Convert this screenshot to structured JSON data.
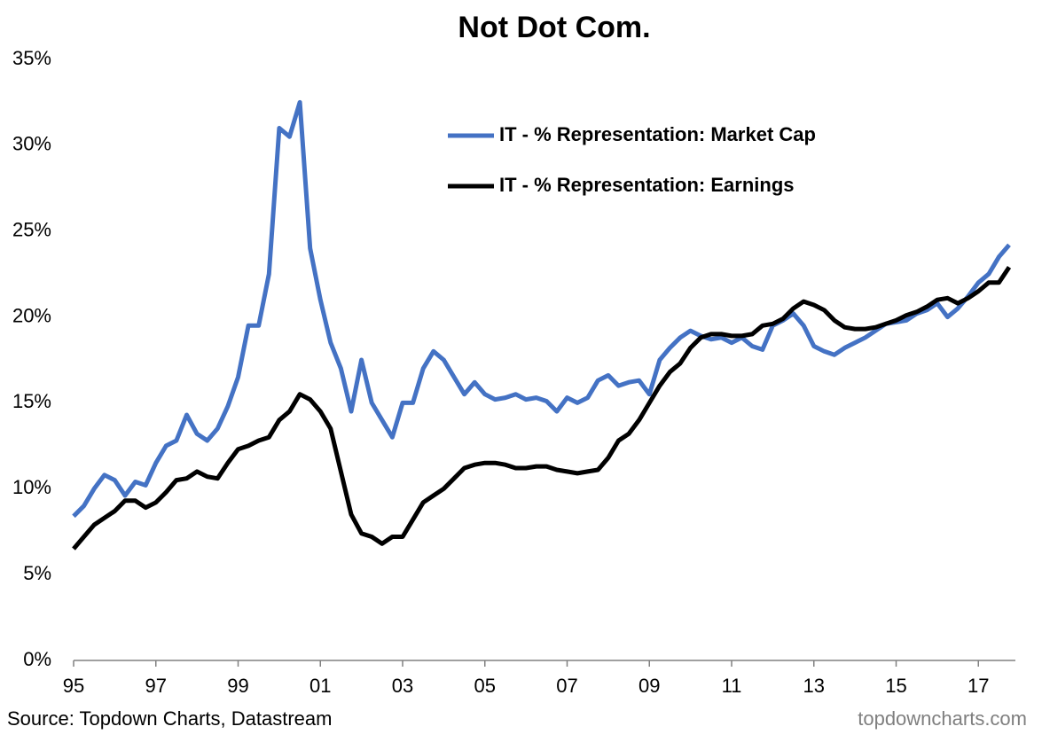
{
  "chart_data": {
    "type": "line",
    "title": "Not Dot Com.",
    "source": "Source: Topdown Charts, Datastream",
    "watermark": "topdowncharts.com",
    "x": [
      1995,
      1995.25,
      1995.5,
      1995.75,
      1996,
      1996.25,
      1996.5,
      1996.75,
      1997,
      1997.25,
      1997.5,
      1997.75,
      1998,
      1998.25,
      1998.5,
      1998.75,
      1999,
      1999.25,
      1999.5,
      1999.75,
      2000,
      2000.25,
      2000.5,
      2000.75,
      2001,
      2001.25,
      2001.5,
      2001.75,
      2002,
      2002.25,
      2002.5,
      2002.75,
      2003,
      2003.25,
      2003.5,
      2003.75,
      2004,
      2004.25,
      2004.5,
      2004.75,
      2005,
      2005.25,
      2005.5,
      2005.75,
      2006,
      2006.25,
      2006.5,
      2006.75,
      2007,
      2007.25,
      2007.5,
      2007.75,
      2008,
      2008.25,
      2008.5,
      2008.75,
      2009,
      2009.25,
      2009.5,
      2009.75,
      2010,
      2010.25,
      2010.5,
      2010.75,
      2011,
      2011.25,
      2011.5,
      2011.75,
      2012,
      2012.25,
      2012.5,
      2012.75,
      2013,
      2013.25,
      2013.5,
      2013.75,
      2014,
      2014.25,
      2014.5,
      2014.75,
      2015,
      2015.25,
      2015.5,
      2015.75,
      2016,
      2016.25,
      2016.5,
      2016.75,
      2017,
      2017.25,
      2017.5,
      2017.75
    ],
    "series": [
      {
        "name": "IT - % Representation: Market Cap",
        "color": "#4472c4",
        "values": [
          8.4,
          9.0,
          10.0,
          10.8,
          10.5,
          9.6,
          10.4,
          10.2,
          11.5,
          12.5,
          12.8,
          14.3,
          13.2,
          12.8,
          13.5,
          14.8,
          16.5,
          19.5,
          19.5,
          22.5,
          31,
          30.5,
          32.5,
          24,
          21,
          18.5,
          17,
          14.5,
          17.5,
          15,
          14,
          13,
          15,
          15,
          17,
          18,
          17.5,
          16.5,
          15.5,
          16.2,
          15.5,
          15.2,
          15.3,
          15.5,
          15.2,
          15.3,
          15.1,
          14.5,
          15.3,
          15.0,
          15.3,
          16.3,
          16.6,
          16.0,
          16.2,
          16.3,
          15.5,
          17.5,
          18.2,
          18.8,
          19.2,
          18.9,
          18.7,
          18.8,
          18.5,
          18.8,
          18.3,
          18.1,
          19.5,
          19.8,
          20.2,
          19.5,
          18.3,
          18.0,
          17.8,
          18.2,
          18.5,
          18.8,
          19.2,
          19.6,
          19.7,
          19.8,
          20.2,
          20.4,
          20.8,
          20.0,
          20.5,
          21.2,
          22.0,
          22.5,
          23.5,
          24.2
        ]
      },
      {
        "name": "IT - % Representation: Earnings",
        "color": "#000000",
        "values": [
          6.5,
          7.2,
          7.9,
          8.3,
          8.7,
          9.3,
          9.3,
          8.9,
          9.2,
          9.8,
          10.5,
          10.6,
          11.0,
          10.7,
          10.6,
          11.5,
          12.3,
          12.5,
          12.8,
          13.0,
          14.0,
          14.5,
          15.5,
          15.2,
          14.5,
          13.5,
          11.0,
          8.5,
          7.4,
          7.2,
          6.8,
          7.2,
          7.2,
          8.2,
          9.2,
          9.6,
          10.0,
          10.6,
          11.2,
          11.4,
          11.5,
          11.5,
          11.4,
          11.2,
          11.2,
          11.3,
          11.3,
          11.1,
          11.0,
          10.9,
          11.0,
          11.1,
          11.8,
          12.8,
          13.2,
          14.0,
          15.0,
          16.0,
          16.8,
          17.3,
          18.2,
          18.8,
          19.0,
          19.0,
          18.9,
          18.9,
          19.0,
          19.5,
          19.6,
          19.9,
          20.5,
          20.9,
          20.7,
          20.4,
          19.8,
          19.4,
          19.3,
          19.3,
          19.4,
          19.6,
          19.8,
          20.1,
          20.3,
          20.6,
          21.0,
          21.1,
          20.8,
          21.1,
          21.5,
          22.0,
          22.0,
          22.9
        ]
      }
    ],
    "xlim": [
      1995,
      2017.9
    ],
    "xticks": [
      {
        "value": 1995,
        "label": "95"
      },
      {
        "value": 1997,
        "label": "97"
      },
      {
        "value": 1999,
        "label": "99"
      },
      {
        "value": 2001,
        "label": "01"
      },
      {
        "value": 2003,
        "label": "03"
      },
      {
        "value": 2005,
        "label": "05"
      },
      {
        "value": 2007,
        "label": "07"
      },
      {
        "value": 2009,
        "label": "09"
      },
      {
        "value": 2011,
        "label": "11"
      },
      {
        "value": 2013,
        "label": "13"
      },
      {
        "value": 2015,
        "label": "15"
      },
      {
        "value": 2017,
        "label": "17"
      }
    ],
    "ylim": [
      0,
      35
    ],
    "yticks": [
      {
        "value": 0,
        "label": "0%"
      },
      {
        "value": 5,
        "label": "5%"
      },
      {
        "value": 10,
        "label": "10%"
      },
      {
        "value": 15,
        "label": "15%"
      },
      {
        "value": 20,
        "label": "20%"
      },
      {
        "value": 25,
        "label": "25%"
      },
      {
        "value": 30,
        "label": "30%"
      },
      {
        "value": 35,
        "label": "35%"
      }
    ],
    "grid": false,
    "legend": "top-center"
  }
}
